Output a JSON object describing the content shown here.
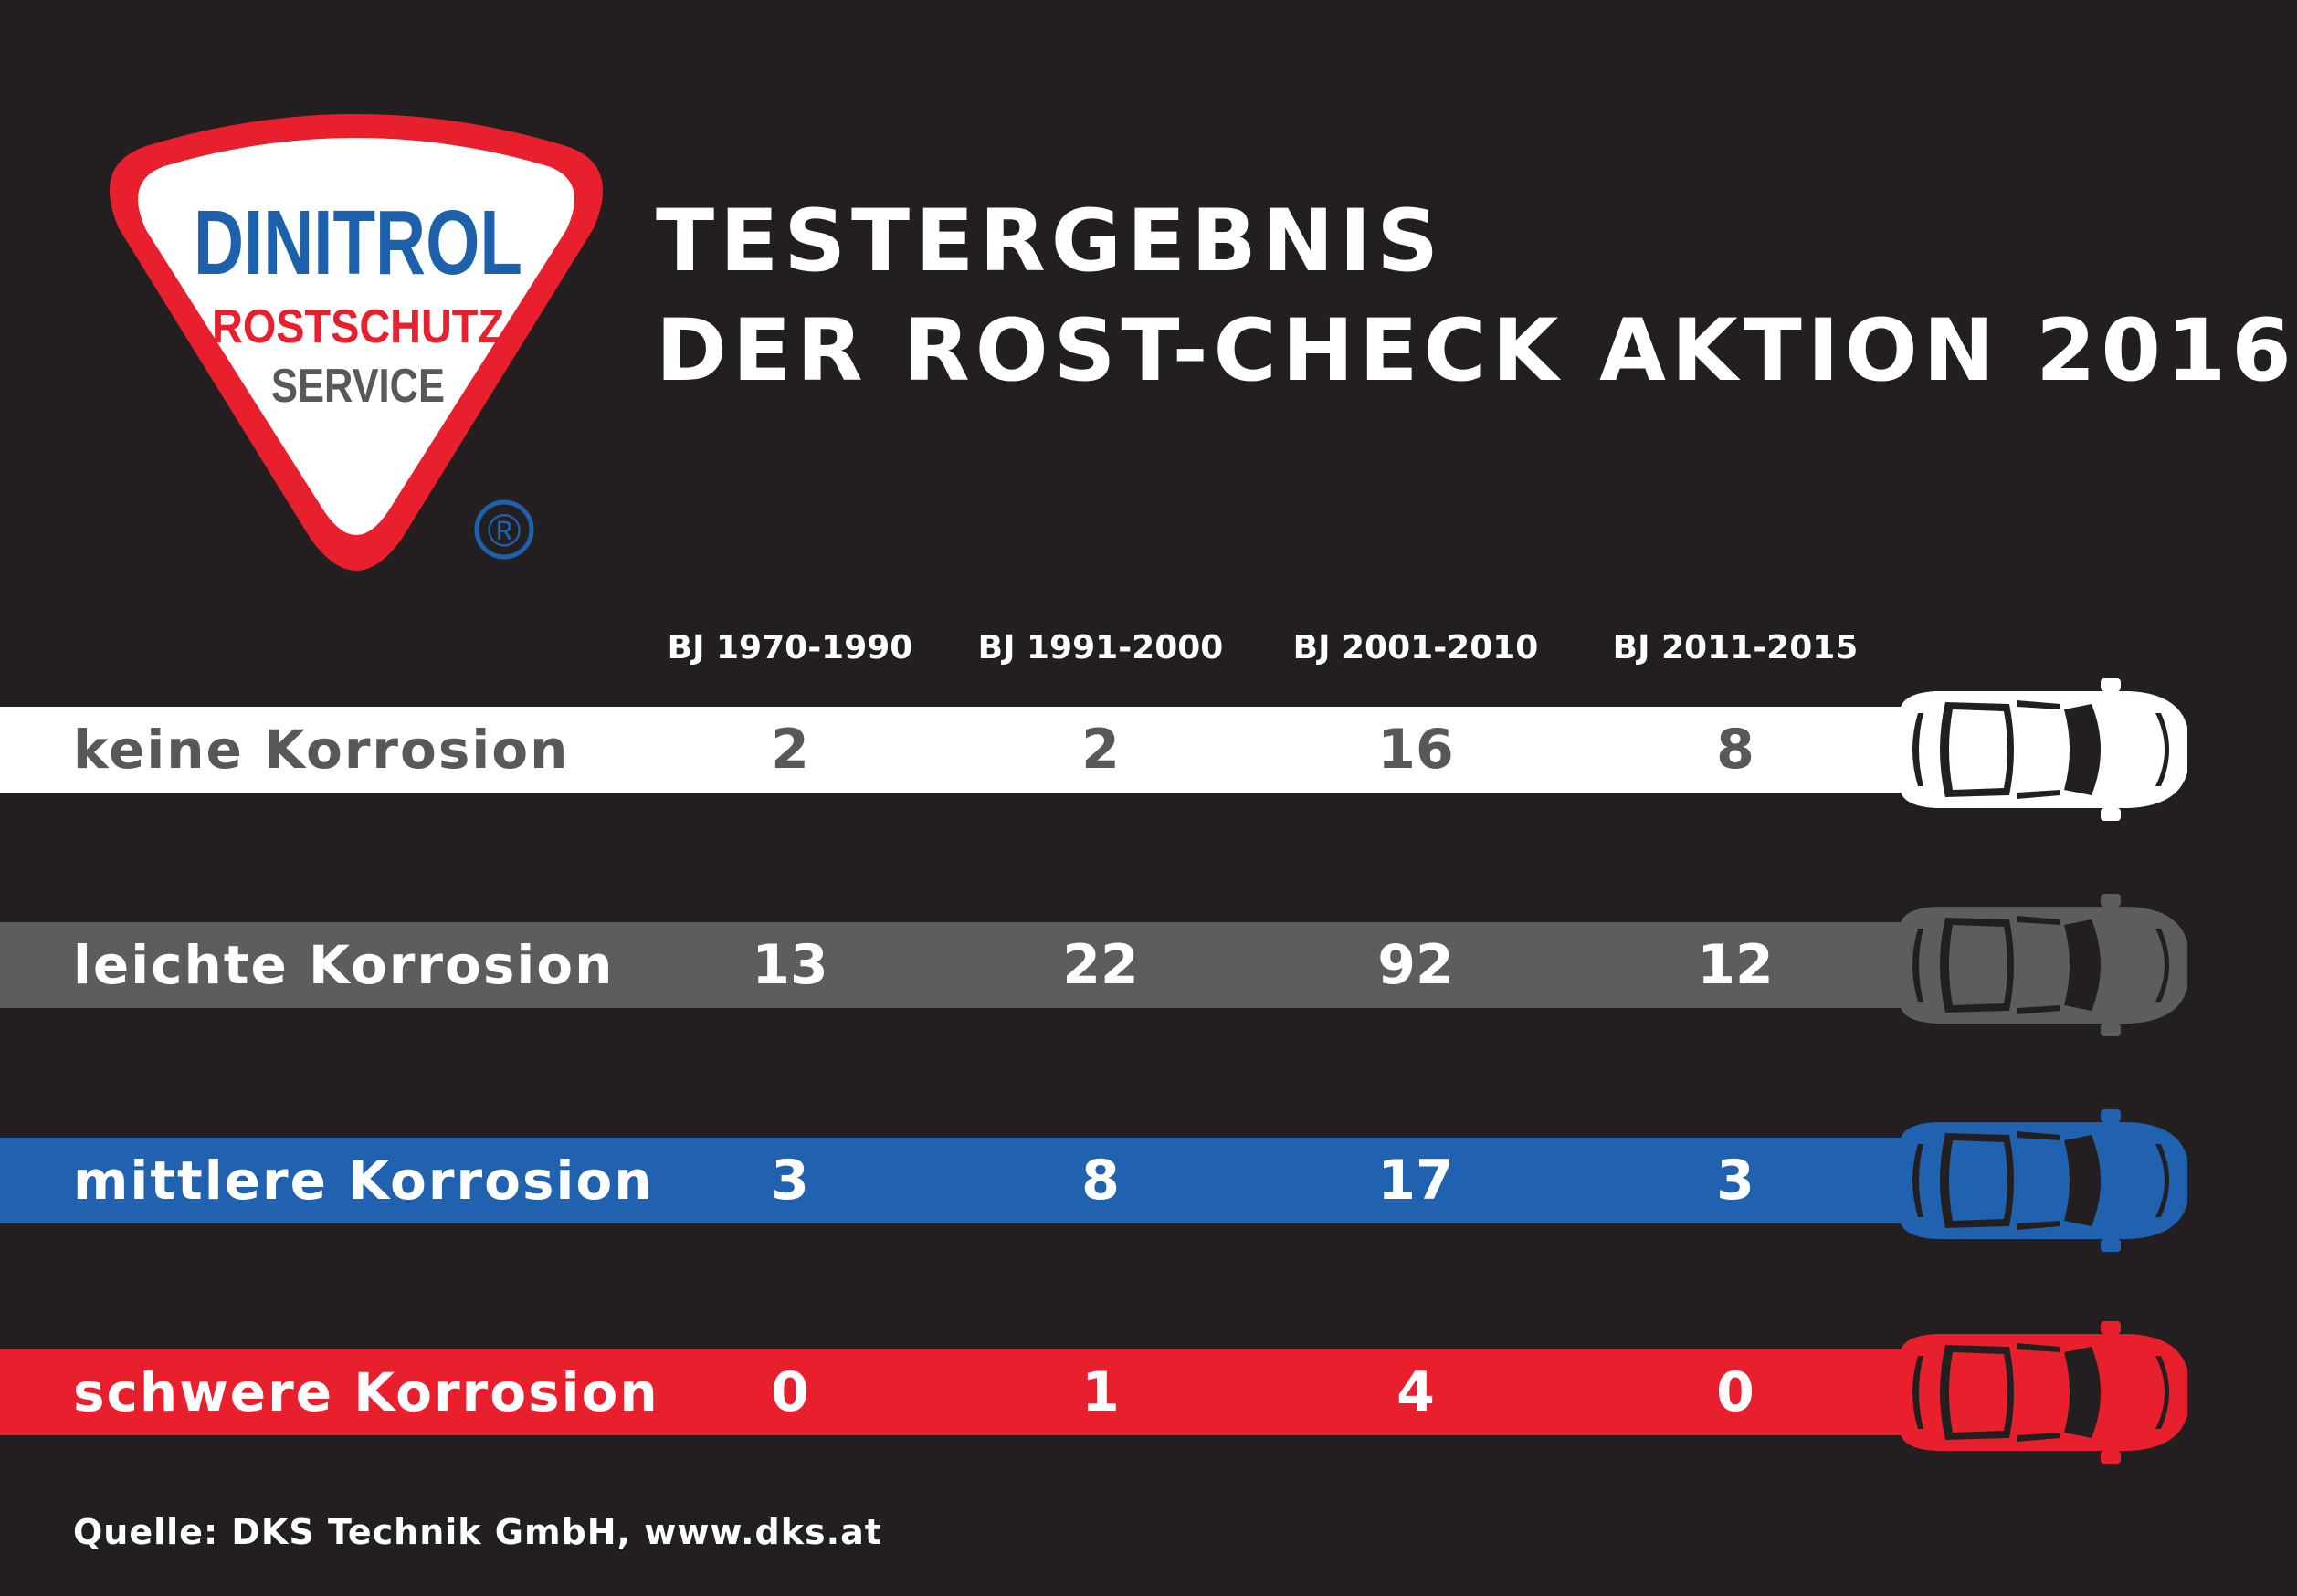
{
  "logo": {
    "line1": "DINITROL",
    "line2": "ROSTSCHUTZ",
    "line3": "SERVICE",
    "registered": "®"
  },
  "title": {
    "line1": "TESTERGEBNIS",
    "line2": "DER ROST-CHECK AKTION 2016"
  },
  "colors": {
    "background": "#231f20",
    "keine": "#ffffff",
    "leichte": "#5d5c5e",
    "mittlere": "#2062af",
    "schwere": "#e8202e",
    "logo_red": "#e8202e",
    "logo_blue": "#1d61ad",
    "logo_gray": "#58585a"
  },
  "chart_data": {
    "type": "table",
    "title": "TESTERGEBNIS DER ROST-CHECK AKTION 2016",
    "columns": [
      "BJ 1970-1990",
      "BJ 1991-2000",
      "BJ 2001-2010",
      "BJ 2011-2015"
    ],
    "rows": [
      {
        "label": "keine Korrosion",
        "values": [
          "2",
          "2",
          "16",
          "8"
        ],
        "bar_color": "#ffffff",
        "text_color": "#58585a",
        "icon": "car-top-icon"
      },
      {
        "label": "leichte Korrosion",
        "values": [
          "13",
          "22",
          "92",
          "12"
        ],
        "bar_color": "#5d5c5e",
        "text_color": "#ffffff",
        "icon": "car-top-icon"
      },
      {
        "label": "mittlere Korrosion",
        "values": [
          "3",
          "8",
          "17",
          "3"
        ],
        "bar_color": "#2062af",
        "text_color": "#ffffff",
        "icon": "car-top-icon"
      },
      {
        "label": "schwere Korrosion",
        "values": [
          "0",
          "1",
          "4",
          "0"
        ],
        "bar_color": "#e8202e",
        "text_color": "#ffffff",
        "icon": "car-top-icon"
      }
    ]
  },
  "source": "Quelle: DKS Technik GmbH, www.dks.at"
}
